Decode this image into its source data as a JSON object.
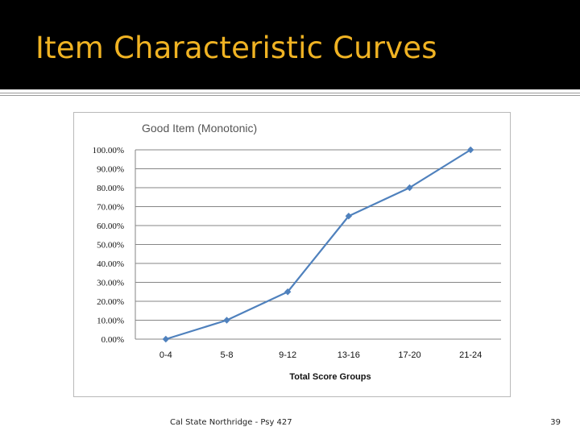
{
  "slide": {
    "title": "Item Characteristic Curves",
    "footer": "Cal State Northridge - Psy 427",
    "page_number": "39"
  },
  "colors": {
    "title_bar": "#000000",
    "title_text": "#f0b323",
    "series_line": "#4f81bd"
  },
  "chart_data": {
    "type": "line",
    "title": "Good Item (Monotonic)",
    "xlabel": "Total Score Groups",
    "ylabel": "",
    "categories": [
      "0-4",
      "5-8",
      "9-12",
      "13-16",
      "17-20",
      "21-24"
    ],
    "series": [
      {
        "values": [
          0,
          10,
          25,
          65,
          80,
          100
        ]
      }
    ],
    "ylim": [
      0,
      100
    ],
    "yticks": [
      "0.00%",
      "10.00%",
      "20.00%",
      "30.00%",
      "40.00%",
      "50.00%",
      "60.00%",
      "70.00%",
      "80.00%",
      "90.00%",
      "100.00%"
    ],
    "grid": true,
    "legend": "none",
    "marker": "diamond"
  }
}
